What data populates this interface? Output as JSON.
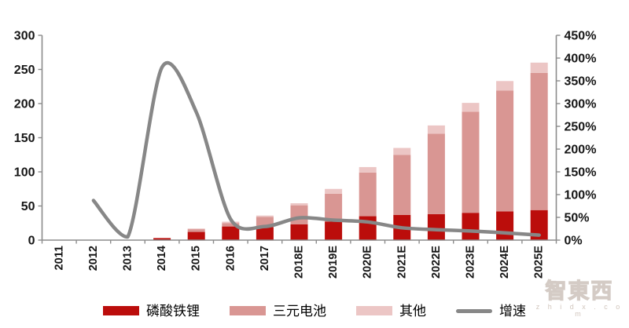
{
  "chart_data": {
    "type": "bar",
    "subtype": "stacked-bars-with-line",
    "title": "",
    "xlabel": "",
    "ylabel": "",
    "categories": [
      "2011",
      "2012",
      "2013",
      "2014",
      "2015",
      "2016",
      "2017",
      "2018E",
      "2019E",
      "2020E",
      "2021E",
      "2022E",
      "2023E",
      "2024E",
      "2025E"
    ],
    "series": [
      {
        "name": "磷酸铁锂",
        "type": "bar-stack",
        "color": "#BB0D0B",
        "values": [
          0,
          0.2,
          0.5,
          3,
          12,
          20,
          19,
          23,
          27,
          35,
          37,
          38,
          40,
          42,
          44
        ]
      },
      {
        "name": "三元电池",
        "type": "bar-stack",
        "color": "#D99693",
        "values": [
          0,
          0,
          0,
          0,
          4,
          5,
          15,
          28,
          41,
          64,
          88,
          118,
          148,
          177,
          201
        ]
      },
      {
        "name": "其他",
        "type": "bar-stack",
        "color": "#ECC6C5",
        "values": [
          0,
          0,
          0,
          0,
          1,
          2,
          2,
          3,
          7,
          8,
          10,
          12,
          13,
          14,
          15
        ]
      },
      {
        "name": "增速",
        "type": "line",
        "axis": "right",
        "color": "#878787",
        "unit": "%",
        "values": [
          null,
          87,
          7,
          380,
          281,
          46,
          30,
          49,
          44,
          40,
          27,
          23,
          20,
          16,
          11
        ]
      }
    ],
    "left_axis": {
      "min": 0,
      "max": 300,
      "tick_step": 50,
      "ticks": [
        0,
        50,
        100,
        150,
        200,
        250,
        300
      ]
    },
    "right_axis": {
      "min": 0,
      "max": 450,
      "tick_step": 50,
      "ticks": [
        "0%",
        "50%",
        "100%",
        "150%",
        "200%",
        "250%",
        "300%",
        "350%",
        "400%",
        "450%"
      ]
    },
    "grid": false,
    "legend_position": "bottom"
  },
  "legend": {
    "items": [
      {
        "label": "磷酸铁锂",
        "shape": "bar",
        "color": "#BB0D0B"
      },
      {
        "label": "三元电池",
        "shape": "bar",
        "color": "#D99693"
      },
      {
        "label": "其他",
        "shape": "bar",
        "color": "#ECC6C5"
      },
      {
        "label": "增速",
        "shape": "line",
        "color": "#878787"
      }
    ]
  },
  "watermark": {
    "title": "智東西",
    "subtitle": "z h i d x . c o m"
  },
  "colors": {
    "axis": "#8c8c8c",
    "label": "#161616",
    "background": "#ffffff"
  }
}
